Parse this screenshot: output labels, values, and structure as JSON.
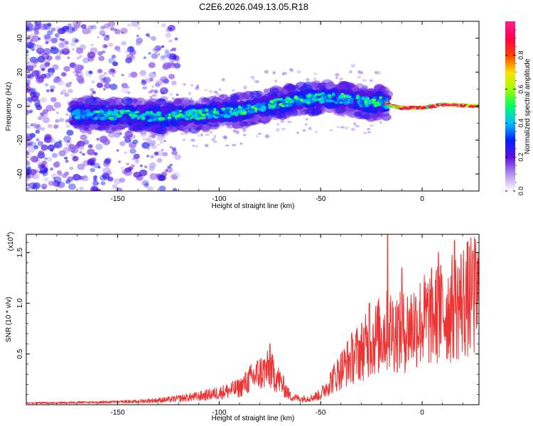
{
  "figure": {
    "title": "C2E6.2026.049.13.05.R18"
  },
  "chart_data": [
    {
      "type": "heatmap",
      "name": "spectrogram",
      "xlabel": "Height of straight line (km)",
      "ylabel": "Frequency (Hz)",
      "xlim": [
        -195,
        28
      ],
      "ylim": [
        -50,
        50
      ],
      "xticks": [
        -150,
        -100,
        -50,
        0
      ],
      "xtick_labels": [
        "-150",
        "-100",
        "-50",
        "0"
      ],
      "yticks": [
        -40,
        -20,
        0,
        20,
        40
      ],
      "ytick_labels": [
        "-40",
        "-20",
        "0",
        "20",
        "40"
      ],
      "colorbar": {
        "label": "Normalized spectral amplitude",
        "range": [
          0,
          1
        ],
        "ticks": [
          0.0,
          0.2,
          0.4,
          0.6,
          0.8
        ],
        "tick_labels": [
          "0.0",
          "0.2",
          "0.4",
          "0.6",
          "0.8"
        ],
        "colormap": [
          "#ffffff",
          "#b090f0",
          "#6010e0",
          "#0020ff",
          "#00c0ff",
          "#00ff60",
          "#a0ff00",
          "#ffe000",
          "#ff4000",
          "#ff0050",
          "#ff2090"
        ]
      },
      "trace": {
        "x": [
          -170,
          -150,
          -130,
          -110,
          -90,
          -70,
          -50,
          -35,
          -25,
          -20,
          -15,
          -10,
          0,
          10,
          28
        ],
        "y": [
          -5,
          -5,
          -6,
          -5,
          -3,
          2,
          5,
          4,
          2,
          3,
          0,
          -1,
          -1,
          1,
          0
        ]
      }
    },
    {
      "type": "line",
      "name": "snr",
      "xlabel": "Height of straight line (km)",
      "ylabel": "SNR (10 * v/v)",
      "y_multiplier_label": "(x10",
      "y_multiplier_exp": "4",
      "xlim": [
        -195,
        28
      ],
      "ylim": [
        0,
        1.68
      ],
      "xticks": [
        -150,
        -100,
        -50,
        0
      ],
      "xtick_labels": [
        "-150",
        "-100",
        "-50",
        "0"
      ],
      "yticks": [
        0.5,
        1.0,
        1.5
      ],
      "ytick_labels": [
        "0.5",
        "1.0",
        "1.5"
      ],
      "color": "#ee3333",
      "envelope": {
        "x": [
          -195,
          -160,
          -140,
          -125,
          -110,
          -100,
          -90,
          -85,
          -80,
          -75,
          -70,
          -65,
          -60,
          -55,
          -50,
          -45,
          -40,
          -35,
          -30,
          -25,
          -20,
          -15,
          -10,
          -5,
          0,
          5,
          10,
          15,
          20,
          28
        ],
        "y": [
          0.02,
          0.03,
          0.04,
          0.06,
          0.1,
          0.14,
          0.2,
          0.3,
          0.38,
          0.42,
          0.28,
          0.1,
          0.07,
          0.08,
          0.12,
          0.28,
          0.42,
          0.55,
          0.65,
          0.75,
          0.85,
          0.9,
          0.85,
          0.95,
          1.0,
          1.05,
          1.1,
          1.15,
          1.25,
          1.3
        ]
      },
      "peaks": [
        {
          "x": -75,
          "y": 0.6
        },
        {
          "x": -26,
          "y": 1.0
        },
        {
          "x": -17,
          "y": 1.68
        },
        {
          "x": -10,
          "y": 1.35
        },
        {
          "x": 8,
          "y": 1.5
        },
        {
          "x": 16,
          "y": 1.62
        },
        {
          "x": 25,
          "y": 1.52
        }
      ]
    }
  ]
}
